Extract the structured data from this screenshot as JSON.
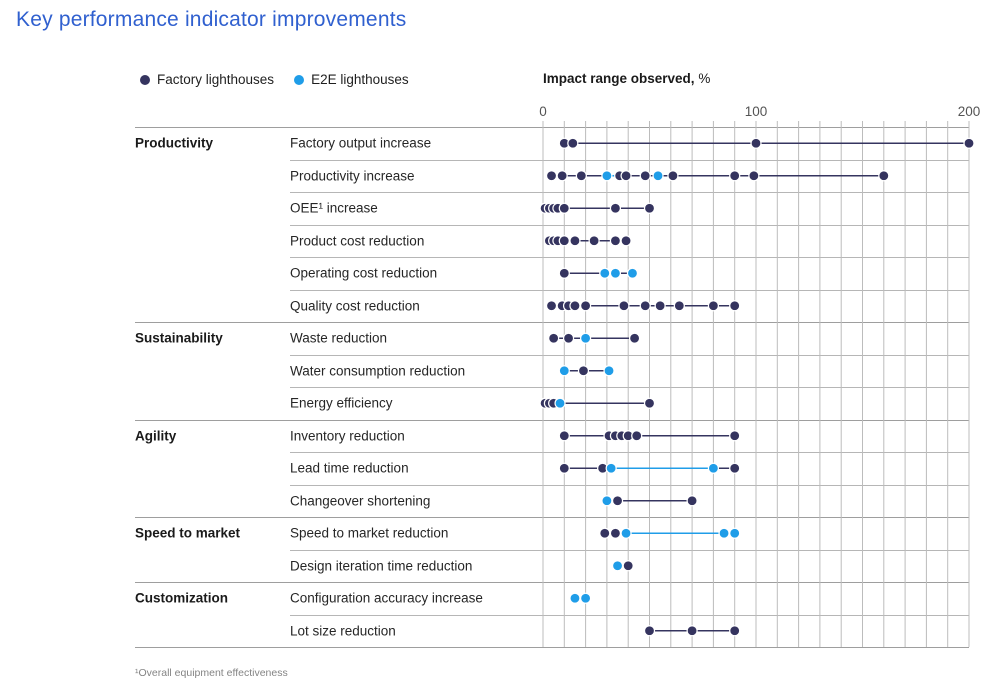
{
  "title": "Key performance indicator improvements",
  "colors": {
    "title": "#3060cf",
    "navy": "#35345f",
    "blue": "#1f9de8",
    "gridline": "#bcbcbc",
    "group_line": "#9e9e9e",
    "row_line": "#b6b6b6"
  },
  "legend": {
    "items": [
      {
        "label": "Factory lighthouses",
        "series": "navy"
      },
      {
        "label": "E2E lighthouses",
        "series": "blue"
      }
    ]
  },
  "axis": {
    "label_bold": "Impact range observed,",
    "label_unit": "%",
    "ticks": [
      "0",
      "100",
      "200"
    ],
    "min": 0,
    "max": 200,
    "gridline_step": 10
  },
  "footnote": "¹Overall equipment effectiveness",
  "chart_data": {
    "type": "scatter",
    "subtype": "dot-range-plot",
    "unit": "%",
    "xlim": [
      0,
      200
    ],
    "legend_position": "top",
    "grid": true,
    "series_names": {
      "navy": "Factory lighthouses",
      "blue": "E2E lighthouses"
    },
    "groups": [
      {
        "category": "Productivity",
        "rows": [
          {
            "label": "Factory output increase",
            "navy": [
              10,
              14,
              100,
              200
            ],
            "blue": [],
            "segments": [
              {
                "from": 10,
                "to": 200,
                "series": "navy"
              }
            ]
          },
          {
            "label": "Productivity increase",
            "navy": [
              4,
              9,
              18,
              36,
              39,
              48,
              61,
              90,
              99,
              160
            ],
            "blue": [
              30,
              54
            ],
            "segments": [
              {
                "from": 4,
                "to": 160,
                "series": "navy"
              },
              {
                "from": 30,
                "to": 36,
                "series": "blue"
              }
            ]
          },
          {
            "label": "OEE¹ increase",
            "navy": [
              1,
              3,
              5,
              7,
              10,
              34,
              50
            ],
            "blue": [],
            "segments": [
              {
                "from": 10,
                "to": 50,
                "series": "navy"
              }
            ]
          },
          {
            "label": "Product cost reduction",
            "navy": [
              3,
              5,
              7,
              10,
              15,
              24,
              34,
              39
            ],
            "blue": [],
            "segments": [
              {
                "from": 10,
                "to": 39,
                "series": "navy"
              }
            ]
          },
          {
            "label": "Operating cost reduction",
            "navy": [
              10
            ],
            "blue": [
              29,
              34,
              42
            ],
            "segments": [
              {
                "from": 10,
                "to": 42,
                "series": "navy"
              }
            ]
          },
          {
            "label": "Quality cost reduction",
            "navy": [
              4,
              9,
              12,
              15,
              20,
              38,
              48,
              55,
              64,
              80,
              90
            ],
            "blue": [],
            "segments": [
              {
                "from": 4,
                "to": 90,
                "series": "navy"
              }
            ]
          }
        ]
      },
      {
        "category": "Sustainability",
        "rows": [
          {
            "label": "Waste reduction",
            "navy": [
              5,
              12,
              43
            ],
            "blue": [
              20
            ],
            "segments": [
              {
                "from": 5,
                "to": 43,
                "series": "navy"
              }
            ]
          },
          {
            "label": "Water consumption reduction",
            "navy": [
              19
            ],
            "blue": [
              10,
              31
            ],
            "segments": [
              {
                "from": 10,
                "to": 31,
                "series": "navy"
              }
            ]
          },
          {
            "label": "Energy efficiency",
            "navy": [
              1,
              3,
              5,
              50
            ],
            "blue": [
              8
            ],
            "segments": [
              {
                "from": 8,
                "to": 50,
                "series": "navy"
              }
            ]
          }
        ]
      },
      {
        "category": "Agility",
        "rows": [
          {
            "label": "Inventory reduction",
            "navy": [
              10,
              31,
              34,
              37,
              40,
              44,
              90
            ],
            "blue": [],
            "segments": [
              {
                "from": 10,
                "to": 90,
                "series": "navy"
              }
            ]
          },
          {
            "label": "Lead time reduction",
            "navy": [
              10,
              28,
              90
            ],
            "blue": [
              32,
              80
            ],
            "segments": [
              {
                "from": 10,
                "to": 90,
                "series": "navy"
              },
              {
                "from": 32,
                "to": 80,
                "series": "blue"
              }
            ]
          },
          {
            "label": "Changeover shortening",
            "navy": [
              35,
              70
            ],
            "blue": [
              30
            ],
            "segments": [
              {
                "from": 35,
                "to": 70,
                "series": "navy"
              }
            ]
          }
        ]
      },
      {
        "category": "Speed to market",
        "rows": [
          {
            "label": "Speed to market reduction",
            "navy": [
              29,
              34
            ],
            "blue": [
              39,
              85,
              90
            ],
            "segments": [
              {
                "from": 39,
                "to": 90,
                "series": "blue"
              }
            ]
          },
          {
            "label": "Design iteration time reduction",
            "navy": [
              40
            ],
            "blue": [
              35
            ],
            "segments": []
          }
        ]
      },
      {
        "category": "Customization",
        "rows": [
          {
            "label": "Configuration accuracy increase",
            "navy": [],
            "blue": [
              15,
              20
            ],
            "segments": []
          },
          {
            "label": "Lot size reduction",
            "navy": [
              50,
              70,
              90
            ],
            "blue": [],
            "segments": [
              {
                "from": 50,
                "to": 90,
                "series": "navy"
              }
            ]
          }
        ]
      }
    ]
  }
}
